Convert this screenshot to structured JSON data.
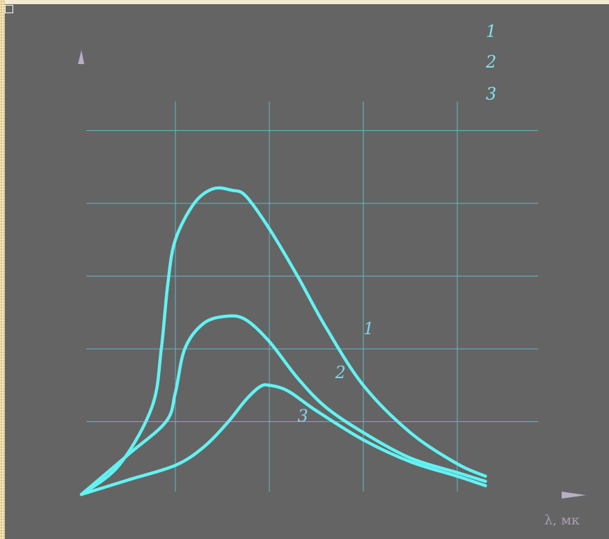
{
  "colors": {
    "background": "#646464",
    "frame": "#f1e2b8",
    "grid": "#63b9c9",
    "curve": "#63f2f2",
    "label": "#7fe3f1",
    "arrow": "#b7aec6"
  },
  "legend": [
    "1",
    "2",
    "3"
  ],
  "axis": {
    "x_label": "λ, мк"
  },
  "chart_data": {
    "type": "line",
    "title": "",
    "xlabel": "λ, мк",
    "ylabel": "",
    "grid": true,
    "legend_position": "top-right",
    "xlim": [
      0,
      5
    ],
    "ylim": [
      0,
      5.5
    ],
    "series": [
      {
        "name": "1",
        "x": [
          0,
          0.4,
          0.75,
          0.85,
          0.92,
          1.0,
          1.2,
          1.4,
          1.6,
          1.75,
          2.0,
          2.3,
          2.6,
          3.0,
          3.5,
          4.0,
          4.3
        ],
        "y": [
          0,
          0.4,
          1.2,
          2.0,
          2.9,
          3.5,
          4.0,
          4.2,
          4.18,
          4.1,
          3.65,
          3.0,
          2.3,
          1.5,
          0.85,
          0.42,
          0.25
        ]
      },
      {
        "name": "2",
        "x": [
          0,
          0.5,
          0.9,
          1.0,
          1.1,
          1.3,
          1.55,
          1.75,
          2.0,
          2.3,
          2.6,
          3.0,
          3.5,
          4.0,
          4.3
        ],
        "y": [
          0,
          0.55,
          1.0,
          1.4,
          2.0,
          2.35,
          2.45,
          2.4,
          2.1,
          1.6,
          1.2,
          0.85,
          0.5,
          0.3,
          0.18
        ]
      },
      {
        "name": "3",
        "x": [
          0,
          0.5,
          1.0,
          1.3,
          1.55,
          1.75,
          1.9,
          2.0,
          2.2,
          2.5,
          3.0,
          3.5,
          4.0,
          4.3
        ],
        "y": [
          0,
          0.2,
          0.4,
          0.65,
          0.98,
          1.3,
          1.48,
          1.5,
          1.42,
          1.15,
          0.75,
          0.45,
          0.25,
          0.12
        ]
      }
    ],
    "curve_labels": [
      {
        "text": "1",
        "x": 3.0,
        "y": 2.2
      },
      {
        "text": "2",
        "x": 2.7,
        "y": 1.6
      },
      {
        "text": "3",
        "x": 2.3,
        "y": 1.0
      }
    ]
  }
}
